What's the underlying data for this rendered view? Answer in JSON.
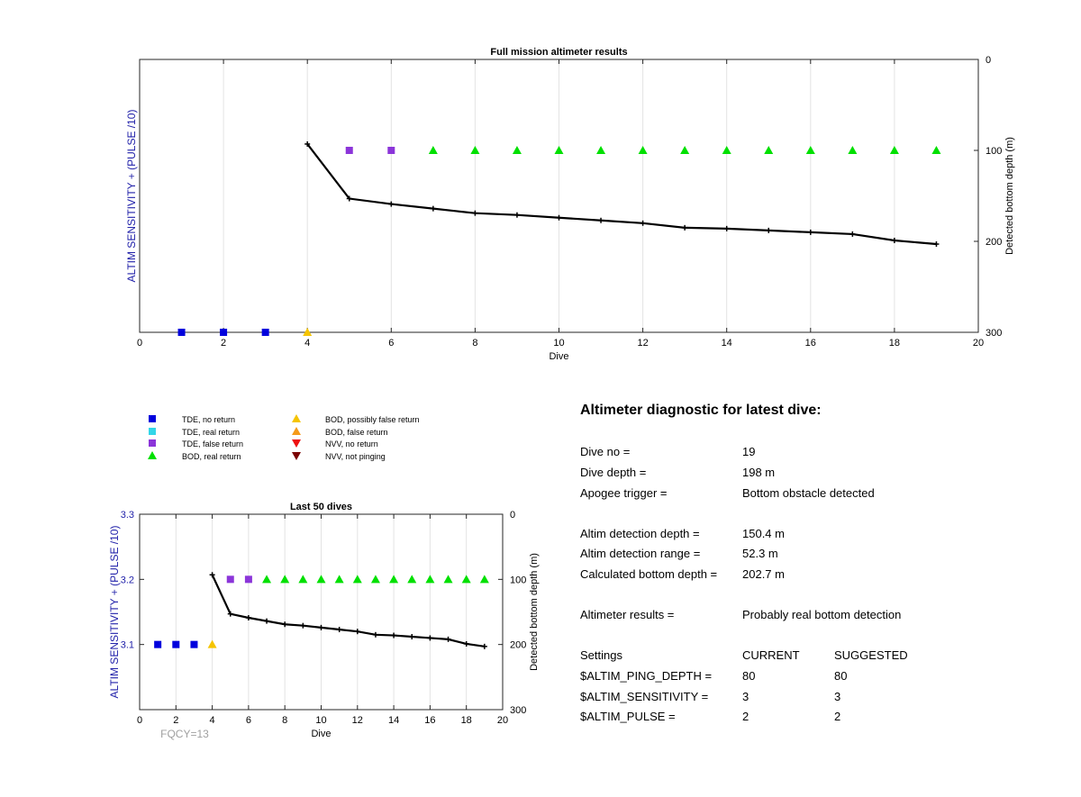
{
  "chart_data": [
    {
      "type": "scatter",
      "title": "Full mission altimeter results",
      "xlabel": "Dive",
      "ylabel_left": "ALTIM SENSITIVITY + (PULSE /10)",
      "ylabel_right": "Detected bottom depth (m)",
      "xlim": [
        0,
        20
      ],
      "x_ticks": [
        0,
        2,
        4,
        6,
        8,
        10,
        12,
        14,
        16,
        18,
        20
      ],
      "y_right_lim": [
        0,
        300
      ],
      "y_right_ticks": [
        0,
        100,
        200,
        300
      ],
      "y_right_reversed": true,
      "grid": "vertical",
      "series": [
        {
          "name": "TDE, no return",
          "marker": "square",
          "color": "#0000dd",
          "points": [
            [
              1,
              300
            ],
            [
              2,
              300
            ],
            [
              3,
              300
            ]
          ]
        },
        {
          "name": "BOD, possibly false return",
          "marker": "triangle-up",
          "color": "#f5c400",
          "points": [
            [
              4,
              300
            ]
          ]
        },
        {
          "name": "TDE, false return",
          "marker": "square",
          "color": "#8b35d9",
          "points": [
            [
              5,
              100
            ],
            [
              6,
              100
            ]
          ]
        },
        {
          "name": "BOD, real return",
          "marker": "triangle-up",
          "color": "#00e000",
          "points": [
            [
              7,
              100
            ],
            [
              8,
              100
            ],
            [
              9,
              100
            ],
            [
              10,
              100
            ],
            [
              11,
              100
            ],
            [
              12,
              100
            ],
            [
              13,
              100
            ],
            [
              14,
              100
            ],
            [
              15,
              100
            ],
            [
              16,
              100
            ],
            [
              17,
              100
            ],
            [
              18,
              100
            ],
            [
              19,
              100
            ]
          ]
        },
        {
          "marker": "line",
          "color": "#000000",
          "points": [
            [
              4,
              93
            ],
            [
              5,
              153
            ],
            [
              6,
              159
            ],
            [
              7,
              164
            ],
            [
              8,
              169
            ],
            [
              9,
              171
            ],
            [
              10,
              174
            ],
            [
              11,
              177
            ],
            [
              12,
              180
            ],
            [
              13,
              185
            ],
            [
              14,
              186
            ],
            [
              15,
              188
            ],
            [
              16,
              190
            ],
            [
              17,
              192
            ],
            [
              18,
              199
            ],
            [
              19,
              203
            ]
          ]
        }
      ]
    },
    {
      "type": "scatter",
      "title": "Last 50 dives",
      "xlabel": "Dive",
      "ylabel_left": "ALTIM SENSITIVITY + (PULSE /10)",
      "ylabel_right": "Detected bottom depth (m)",
      "xlim": [
        0,
        20
      ],
      "x_ticks": [
        0,
        2,
        4,
        6,
        8,
        10,
        12,
        14,
        16,
        18,
        20
      ],
      "y_left_lim": [
        3.0,
        3.3
      ],
      "y_left_ticks": [
        3.1,
        3.2,
        3.3
      ],
      "y_right_lim": [
        0,
        300
      ],
      "y_right_ticks": [
        0,
        100,
        200,
        300
      ],
      "y_right_reversed": true,
      "grid": "vertical",
      "annotation": "FQCY=13",
      "series": [
        {
          "name": "TDE, no return",
          "marker": "square",
          "color": "#0000dd",
          "points": [
            [
              1,
              3.1
            ],
            [
              2,
              3.1
            ],
            [
              3,
              3.1
            ]
          ]
        },
        {
          "name": "BOD, possibly false return",
          "marker": "triangle-up",
          "color": "#f5c400",
          "points": [
            [
              4,
              3.1
            ]
          ]
        },
        {
          "name": "TDE, false return",
          "marker": "square",
          "color": "#8b35d9",
          "points": [
            [
              5,
              3.2
            ],
            [
              6,
              3.2
            ]
          ]
        },
        {
          "name": "BOD, real return",
          "marker": "triangle-up",
          "color": "#00e000",
          "points": [
            [
              7,
              3.2
            ],
            [
              8,
              3.2
            ],
            [
              9,
              3.2
            ],
            [
              10,
              3.2
            ],
            [
              11,
              3.2
            ],
            [
              12,
              3.2
            ],
            [
              13,
              3.2
            ],
            [
              14,
              3.2
            ],
            [
              15,
              3.2
            ],
            [
              16,
              3.2
            ],
            [
              17,
              3.2
            ],
            [
              18,
              3.2
            ],
            [
              19,
              3.2
            ]
          ]
        },
        {
          "marker": "line",
          "color": "#000000",
          "axis": "right",
          "points": [
            [
              4,
              93
            ],
            [
              5,
              153
            ],
            [
              6,
              159
            ],
            [
              7,
              164
            ],
            [
              8,
              169
            ],
            [
              9,
              171
            ],
            [
              10,
              174
            ],
            [
              11,
              177
            ],
            [
              12,
              180
            ],
            [
              13,
              185
            ],
            [
              14,
              186
            ],
            [
              15,
              188
            ],
            [
              16,
              190
            ],
            [
              17,
              192
            ],
            [
              18,
              199
            ],
            [
              19,
              203
            ]
          ]
        }
      ]
    }
  ],
  "legend": {
    "items": [
      {
        "label": "TDE, no return",
        "marker": "square",
        "color": "#0000dd"
      },
      {
        "label": "TDE, real return",
        "marker": "square",
        "color": "#33d6e8"
      },
      {
        "label": "TDE, false return",
        "marker": "square",
        "color": "#8b35d9"
      },
      {
        "label": "BOD, real return",
        "marker": "triangle-up",
        "color": "#00e000"
      },
      {
        "label": "BOD, possibly false return",
        "marker": "triangle-up",
        "color": "#f5c400"
      },
      {
        "label": "BOD, false return",
        "marker": "triangle-up",
        "color": "#f59a1a"
      },
      {
        "label": "NVV, no return",
        "marker": "triangle-down",
        "color": "#ee1111"
      },
      {
        "label": "NVV, not pinging",
        "marker": "triangle-down",
        "color": "#7a0000"
      }
    ]
  },
  "diagnostic": {
    "title": "Altimeter diagnostic for latest dive:",
    "rows": [
      {
        "label": "Dive no =",
        "value": "19"
      },
      {
        "label": "Dive depth =",
        "value": "198 m"
      },
      {
        "label": "Apogee trigger =",
        "value": "Bottom obstacle detected"
      },
      {
        "label": "Altim detection depth =",
        "value": "150.4 m"
      },
      {
        "label": "Altim detection range =",
        "value": "52.3 m"
      },
      {
        "label": "Calculated bottom depth =",
        "value": "202.7 m"
      },
      {
        "label": "Altimeter results =",
        "value": "Probably real bottom detection"
      }
    ],
    "settings_header": {
      "label": "Settings",
      "current": "CURRENT",
      "suggested": "SUGGESTED"
    },
    "settings": [
      {
        "label": "$ALTIM_PING_DEPTH =",
        "current": "80",
        "suggested": "80"
      },
      {
        "label": "$ALTIM_SENSITIVITY =",
        "current": "3",
        "suggested": "3"
      },
      {
        "label": "$ALTIM_PULSE =",
        "current": "2",
        "suggested": "2"
      }
    ]
  },
  "colors": {
    "axis_label_left": "#2222aa",
    "annotation": "#a0a0a0",
    "grid": "#e3e3e3"
  }
}
